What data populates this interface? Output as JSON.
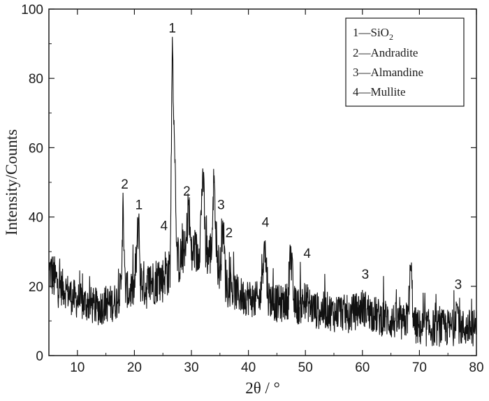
{
  "chart_data": {
    "type": "line",
    "xlabel": "2θ / °",
    "ylabel": "Intensity/Counts",
    "xlim": [
      5,
      80
    ],
    "ylim": [
      0,
      100
    ],
    "xticks": [
      10,
      20,
      30,
      40,
      50,
      60,
      70,
      80
    ],
    "yticks": [
      0,
      20,
      40,
      60,
      80,
      100
    ],
    "grid": false,
    "legend_position": "top-right",
    "line_color": "#111111",
    "series": [
      {
        "x": [
          5.0,
          6.0,
          7.0,
          8.0,
          9.0,
          10.0,
          11.0,
          12.0,
          13.0,
          14.0,
          15.0,
          16.0,
          17.0,
          17.7,
          18.0,
          18.3,
          19.0,
          20.0,
          20.8,
          21.0,
          21.5,
          22.0,
          23.0,
          24.0,
          25.0,
          25.5,
          26.0,
          26.3,
          26.65,
          27.0,
          27.5,
          28.0,
          28.5,
          29.0,
          29.5,
          30.0,
          30.5,
          31.0,
          31.5,
          32.0,
          32.5,
          33.0,
          33.5,
          34.0,
          34.5,
          35.0,
          35.5,
          36.0,
          36.5,
          37.0,
          38.0,
          39.0,
          40.0,
          41.0,
          42.0,
          42.8,
          43.5,
          44.0,
          45.0,
          46.0,
          47.0,
          47.3,
          48.0,
          49.0,
          50.0,
          51.0,
          52.0,
          53.0,
          54.0,
          55.0,
          56.0,
          57.0,
          58.0,
          59.0,
          60.0,
          61.0,
          62.0,
          63.0,
          64.0,
          65.0,
          66.0,
          67.0,
          68.0,
          68.5,
          69.0,
          70.0,
          71.0,
          72.0,
          73.0,
          74.0,
          75.0,
          76.0,
          76.6,
          77.0,
          78.0,
          79.0,
          80.0
        ],
        "y": [
          25,
          22,
          20,
          19,
          17,
          16,
          15,
          15,
          14,
          14,
          15,
          15,
          16,
          20,
          47,
          21,
          18,
          19,
          41,
          22,
          21,
          20,
          21,
          22,
          22,
          25,
          23,
          27,
          92,
          64,
          28,
          27,
          30,
          29,
          45,
          28,
          31,
          29,
          33,
          54,
          30,
          29,
          30,
          52,
          28,
          24,
          39,
          22,
          20,
          19,
          18,
          17,
          17,
          16,
          16,
          33,
          17,
          16,
          15,
          15,
          16,
          32,
          15,
          14,
          16,
          14,
          13,
          13,
          13,
          12,
          13,
          12,
          12,
          13,
          14,
          13,
          12,
          11,
          11,
          10,
          10,
          9,
          11,
          26,
          9,
          8,
          8,
          8,
          8,
          8,
          8,
          8,
          15,
          8,
          8,
          8,
          8
        ]
      }
    ]
  },
  "peak_annotations": [
    {
      "text": "1",
      "x": 26.65,
      "y": 92
    },
    {
      "text": "2",
      "x": 18.3,
      "y": 47
    },
    {
      "text": "1",
      "x": 20.8,
      "y": 41
    },
    {
      "text": "4",
      "x": 25.2,
      "y": 35
    },
    {
      "text": "2",
      "x": 29.2,
      "y": 45
    },
    {
      "text": "3",
      "x": 35.2,
      "y": 41
    },
    {
      "text": "2",
      "x": 36.6,
      "y": 33
    },
    {
      "text": "4",
      "x": 43.0,
      "y": 36
    },
    {
      "text": "4",
      "x": 50.3,
      "y": 27
    },
    {
      "text": "3",
      "x": 60.5,
      "y": 21
    },
    {
      "text": "3",
      "x": 76.8,
      "y": 18
    }
  ],
  "legend": {
    "items": [
      {
        "num": "1",
        "name": "SiO",
        "sub": "2"
      },
      {
        "num": "2",
        "name": "Andradite",
        "sub": ""
      },
      {
        "num": "3",
        "name": "Almandine",
        "sub": ""
      },
      {
        "num": "4",
        "name": "Mullite",
        "sub": ""
      }
    ]
  }
}
